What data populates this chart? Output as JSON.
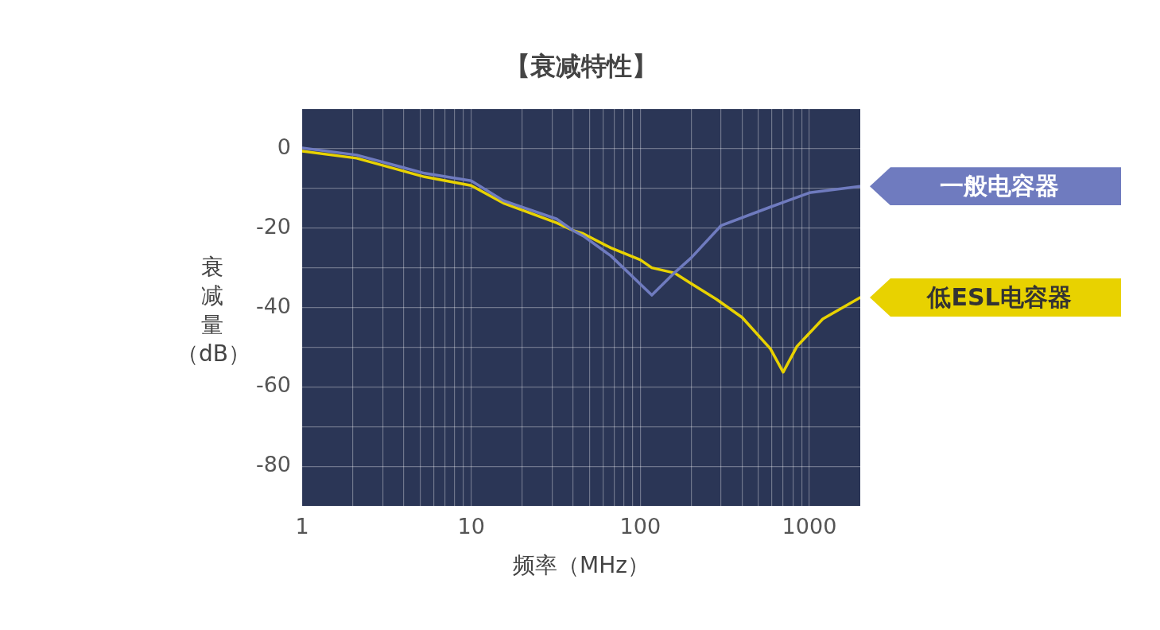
{
  "chart_data": {
    "type": "line",
    "title": "【衰减特性】",
    "xlabel": "频率（MHz）",
    "ylabel": "衰减量（dB）",
    "log": "x",
    "grid": true,
    "legend": "right",
    "marker": "none",
    "line_style": "solid",
    "xlim": [
      1,
      2000
    ],
    "ylim": [
      -90,
      10
    ],
    "xticks": [
      1,
      {
        "value": 2,
        "label": null
      },
      {
        "value": 3,
        "label": null
      },
      {
        "value": 4,
        "label": null
      },
      {
        "value": 5,
        "label": null
      },
      {
        "value": 6,
        "label": null
      },
      {
        "value": 7,
        "label": null
      },
      {
        "value": 8,
        "label": null
      },
      {
        "value": 9,
        "label": null
      },
      10,
      {
        "value": 20,
        "label": null
      },
      {
        "value": 30,
        "label": null
      },
      {
        "value": 40,
        "label": null
      },
      {
        "value": 50,
        "label": null
      },
      {
        "value": 60,
        "label": null
      },
      {
        "value": 70,
        "label": null
      },
      {
        "value": 80,
        "label": null
      },
      {
        "value": 90,
        "label": null
      },
      100,
      {
        "value": 200,
        "label": null
      },
      {
        "value": 300,
        "label": null
      },
      {
        "value": 400,
        "label": null
      },
      {
        "value": 500,
        "label": null
      },
      {
        "value": 600,
        "label": null
      },
      {
        "value": 700,
        "label": null
      },
      {
        "value": 800,
        "label": null
      },
      {
        "value": 900,
        "label": null
      },
      1000
    ],
    "yticks": [
      {
        "value": 10,
        "label": null
      },
      0,
      {
        "value": -10,
        "label": null
      },
      -20,
      {
        "value": -30,
        "label": null
      },
      -40,
      {
        "value": -50,
        "label": null
      },
      -60,
      {
        "value": -70,
        "label": null
      },
      -80
    ],
    "series": [
      {
        "name": "一般电容器",
        "color": "#6f7bbf",
        "x": [
          1,
          2.1,
          5.3,
          10,
          15.5,
          32,
          40,
          46,
          67,
          117,
          159,
          200,
          300,
          588,
          1000,
          2000
        ],
        "values": [
          0.2,
          -1.6,
          -6.2,
          -8.1,
          -13.1,
          -17.7,
          -20.6,
          -22,
          -27,
          -36.9,
          -31.3,
          -27.5,
          -19.4,
          -14.7,
          -11.1,
          -9.5
        ]
      },
      {
        "name": "低ESL电容器",
        "color": "#e8d200",
        "x": [
          1,
          2.1,
          5.3,
          10,
          15.5,
          32,
          40,
          46,
          67,
          100,
          117,
          159,
          200,
          281,
          400,
          588,
          700,
          845,
          1200,
          2000
        ],
        "values": [
          -0.6,
          -2.4,
          -7.1,
          -9.3,
          -13.7,
          -18.7,
          -20.6,
          -21.4,
          -25,
          -28,
          -30,
          -31.3,
          -34,
          -37.9,
          -42.5,
          -50.4,
          -56.3,
          -49.8,
          -42.9,
          -37.5
        ]
      }
    ]
  }
}
